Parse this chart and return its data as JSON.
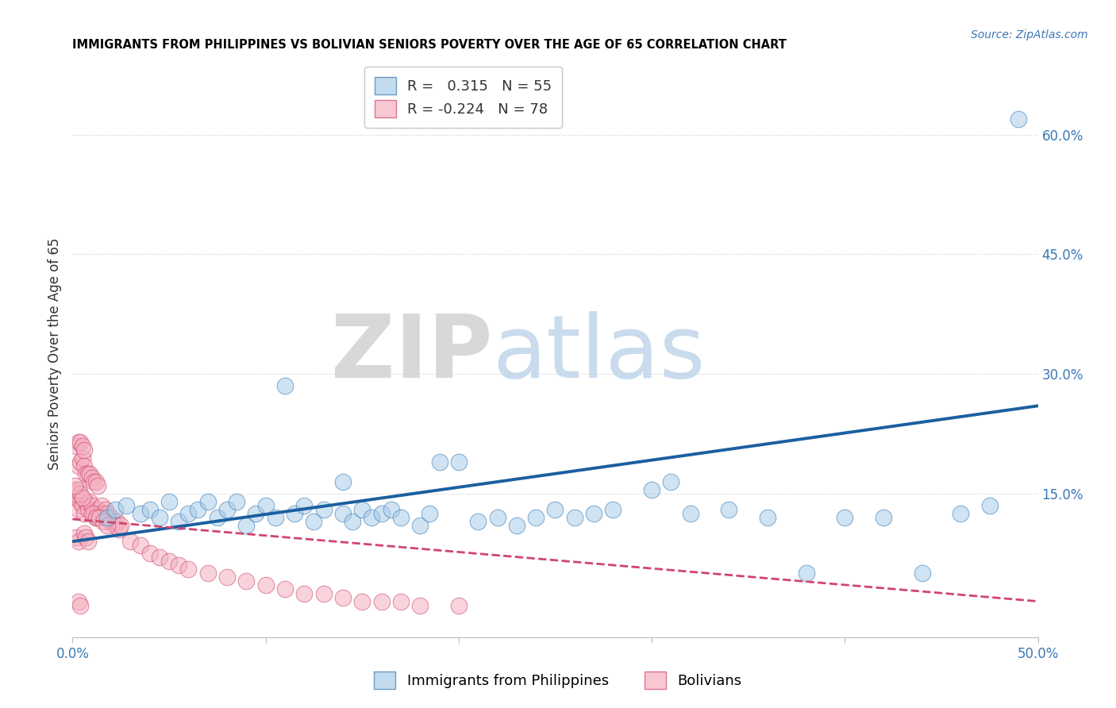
{
  "title": "IMMIGRANTS FROM PHILIPPINES VS BOLIVIAN SENIORS POVERTY OVER THE AGE OF 65 CORRELATION CHART",
  "source": "Source: ZipAtlas.com",
  "ylabel": "Seniors Poverty Over the Age of 65",
  "xlim": [
    0.0,
    0.5
  ],
  "ylim": [
    -0.03,
    0.68
  ],
  "yticks_right": [
    0.15,
    0.3,
    0.45,
    0.6
  ],
  "ytick_right_labels": [
    "15.0%",
    "30.0%",
    "45.0%",
    "60.0%"
  ],
  "blue_R": 0.315,
  "blue_N": 55,
  "pink_R": -0.224,
  "pink_N": 78,
  "blue_color": "#a8cce8",
  "pink_color": "#f4b0c0",
  "blue_edge_color": "#3a78b5",
  "pink_edge_color": "#d04570",
  "blue_line_color": "#1a5fa0",
  "pink_line_color": "#d04570",
  "blue_line_x0": 0.0,
  "blue_line_y0": 0.09,
  "blue_line_x1": 0.5,
  "blue_line_y1": 0.26,
  "pink_line_x0": 0.0,
  "pink_line_y0": 0.118,
  "pink_line_x1": 0.5,
  "pink_line_y1": 0.015,
  "blue_scatter_x": [
    0.018,
    0.022,
    0.028,
    0.035,
    0.04,
    0.045,
    0.05,
    0.055,
    0.06,
    0.065,
    0.07,
    0.075,
    0.08,
    0.085,
    0.09,
    0.095,
    0.1,
    0.105,
    0.11,
    0.115,
    0.12,
    0.125,
    0.13,
    0.14,
    0.145,
    0.15,
    0.155,
    0.16,
    0.165,
    0.17,
    0.18,
    0.185,
    0.19,
    0.2,
    0.21,
    0.22,
    0.23,
    0.24,
    0.25,
    0.26,
    0.27,
    0.28,
    0.3,
    0.31,
    0.32,
    0.34,
    0.36,
    0.38,
    0.4,
    0.42,
    0.44,
    0.46,
    0.475,
    0.14,
    0.49
  ],
  "blue_scatter_y": [
    0.12,
    0.13,
    0.135,
    0.125,
    0.13,
    0.12,
    0.14,
    0.115,
    0.125,
    0.13,
    0.14,
    0.12,
    0.13,
    0.14,
    0.11,
    0.125,
    0.135,
    0.12,
    0.285,
    0.125,
    0.135,
    0.115,
    0.13,
    0.125,
    0.115,
    0.13,
    0.12,
    0.125,
    0.13,
    0.12,
    0.11,
    0.125,
    0.19,
    0.19,
    0.115,
    0.12,
    0.11,
    0.12,
    0.13,
    0.12,
    0.125,
    0.13,
    0.155,
    0.165,
    0.125,
    0.13,
    0.12,
    0.05,
    0.12,
    0.12,
    0.05,
    0.125,
    0.135,
    0.165,
    0.62
  ],
  "pink_scatter_x": [
    0.002,
    0.003,
    0.004,
    0.005,
    0.006,
    0.007,
    0.008,
    0.009,
    0.01,
    0.011,
    0.012,
    0.013,
    0.014,
    0.015,
    0.016,
    0.017,
    0.018,
    0.019,
    0.02,
    0.021,
    0.022,
    0.023,
    0.024,
    0.025,
    0.003,
    0.004,
    0.005,
    0.006,
    0.007,
    0.008,
    0.009,
    0.01,
    0.011,
    0.012,
    0.013,
    0.002,
    0.003,
    0.004,
    0.005,
    0.006,
    0.001,
    0.002,
    0.003,
    0.004,
    0.005,
    0.001,
    0.002,
    0.003,
    0.03,
    0.035,
    0.04,
    0.045,
    0.05,
    0.055,
    0.06,
    0.07,
    0.08,
    0.09,
    0.1,
    0.11,
    0.12,
    0.13,
    0.14,
    0.15,
    0.16,
    0.17,
    0.18,
    0.2,
    0.006,
    0.007,
    0.008,
    0.003,
    0.004,
    0.01,
    0.012,
    0.014,
    0.016,
    0.018
  ],
  "pink_scatter_y": [
    0.145,
    0.13,
    0.14,
    0.135,
    0.125,
    0.14,
    0.13,
    0.14,
    0.135,
    0.125,
    0.12,
    0.13,
    0.125,
    0.135,
    0.125,
    0.13,
    0.125,
    0.115,
    0.12,
    0.115,
    0.11,
    0.115,
    0.105,
    0.11,
    0.185,
    0.19,
    0.195,
    0.185,
    0.175,
    0.175,
    0.175,
    0.17,
    0.165,
    0.165,
    0.16,
    0.21,
    0.215,
    0.215,
    0.21,
    0.205,
    0.15,
    0.155,
    0.155,
    0.15,
    0.145,
    0.16,
    0.095,
    0.09,
    0.09,
    0.085,
    0.075,
    0.07,
    0.065,
    0.06,
    0.055,
    0.05,
    0.045,
    0.04,
    0.035,
    0.03,
    0.025,
    0.025,
    0.02,
    0.015,
    0.015,
    0.015,
    0.01,
    0.01,
    0.1,
    0.095,
    0.09,
    0.015,
    0.01,
    0.125,
    0.12,
    0.12,
    0.115,
    0.11
  ]
}
